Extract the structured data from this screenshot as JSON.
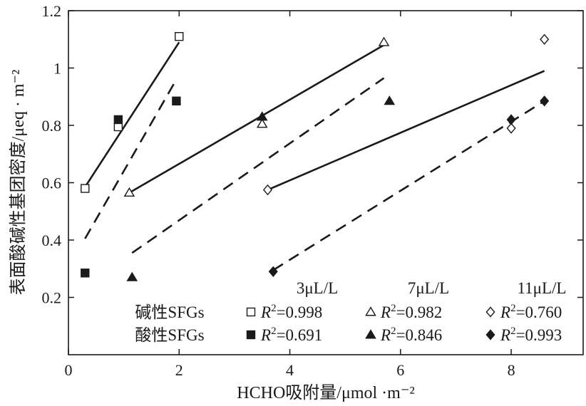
{
  "chart_data": {
    "type": "scatter",
    "xlabel": "HCHO吸附量/μmol ·m⁻²",
    "ylabel": "表面酸碱性基团密度/μeq · m⁻²",
    "xlim": [
      0,
      9.3
    ],
    "ylim": [
      0,
      1.2
    ],
    "xticks": [
      0,
      2,
      4,
      6,
      8
    ],
    "xtick_labels": [
      "0",
      "2",
      "4",
      "6",
      "8"
    ],
    "yticks": [
      0.2,
      0.4,
      0.6,
      0.8,
      1.0,
      1.2
    ],
    "ytick_labels": [
      "0.2",
      "0.4",
      "0.6",
      "0.8",
      "1",
      "1.2"
    ],
    "grid": false,
    "legend": {
      "placement": "bottom-right",
      "row_labels": [
        "碱性SFGs",
        "酸性SFGs"
      ],
      "column_headers": [
        "3μL/L",
        "7μL/L",
        "11μL/L"
      ],
      "r2_prefix": "R",
      "r2_sup": "2",
      "r2_values": [
        [
          "=0.998",
          "=0.982",
          "=0.760"
        ],
        [
          "=0.691",
          "=0.846",
          "=0.993"
        ]
      ]
    },
    "series": [
      {
        "group": "basic",
        "concentration": "3μL/L",
        "marker": "open-square",
        "line": "solid",
        "points": [
          [
            0.3,
            0.58
          ],
          [
            0.9,
            0.795
          ],
          [
            2.0,
            1.11
          ]
        ],
        "fit": [
          [
            0.3,
            0.585
          ],
          [
            2.0,
            1.09
          ]
        ]
      },
      {
        "group": "acidic",
        "concentration": "3μL/L",
        "marker": "filled-square",
        "line": "dashed",
        "points": [
          [
            0.3,
            0.285
          ],
          [
            0.9,
            0.82
          ],
          [
            1.95,
            0.885
          ]
        ],
        "fit": [
          [
            0.3,
            0.405
          ],
          [
            1.95,
            0.96
          ]
        ]
      },
      {
        "group": "basic",
        "concentration": "7μL/L",
        "marker": "open-triangle",
        "line": "solid",
        "points": [
          [
            1.1,
            0.565
          ],
          [
            3.5,
            0.805
          ],
          [
            5.7,
            1.09
          ]
        ],
        "fit": [
          [
            1.1,
            0.565
          ],
          [
            5.7,
            1.08
          ]
        ]
      },
      {
        "group": "acidic",
        "concentration": "7μL/L",
        "marker": "filled-triangle",
        "line": "dashed",
        "points": [
          [
            1.15,
            0.27
          ],
          [
            3.5,
            0.83
          ],
          [
            5.8,
            0.885
          ]
        ],
        "fit": [
          [
            1.15,
            0.355
          ],
          [
            5.7,
            0.965
          ]
        ]
      },
      {
        "group": "basic",
        "concentration": "11μL/L",
        "marker": "open-diamond",
        "line": "solid",
        "points": [
          [
            3.6,
            0.575
          ],
          [
            8.0,
            0.79
          ],
          [
            8.6,
            1.1
          ]
        ],
        "fit": [
          [
            3.6,
            0.575
          ],
          [
            8.6,
            0.99
          ]
        ]
      },
      {
        "group": "acidic",
        "concentration": "11μL/L",
        "marker": "filled-diamond",
        "line": "dashed",
        "points": [
          [
            3.7,
            0.29
          ],
          [
            8.0,
            0.82
          ],
          [
            8.6,
            0.885
          ]
        ],
        "fit": [
          [
            3.7,
            0.295
          ],
          [
            8.6,
            0.885
          ]
        ]
      }
    ]
  }
}
